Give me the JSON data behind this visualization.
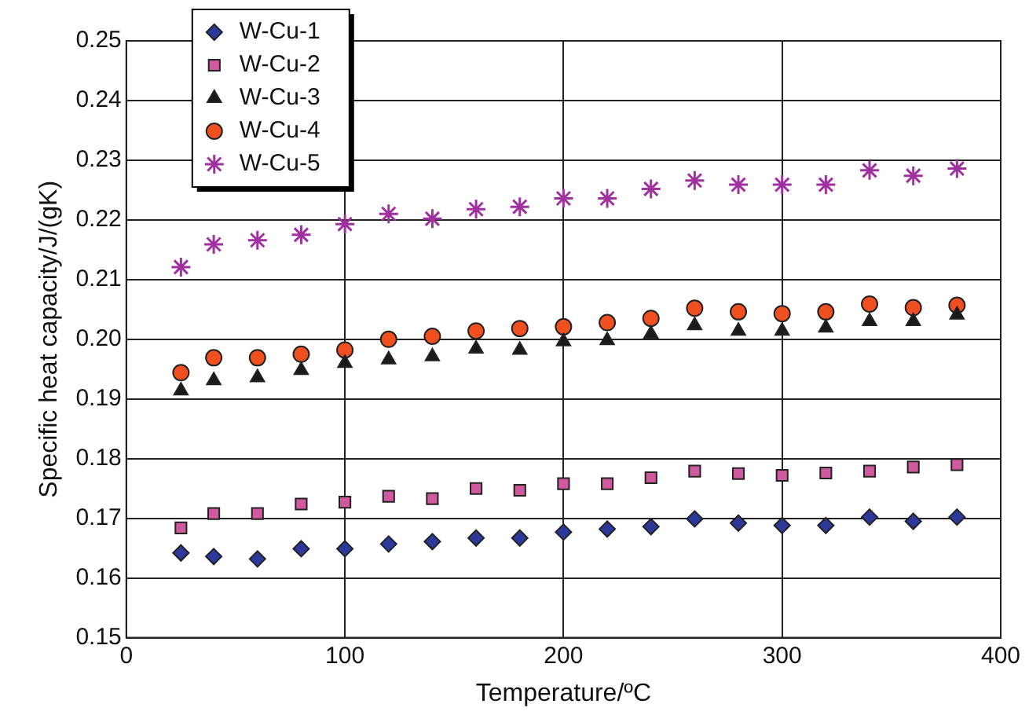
{
  "chart_data": {
    "type": "scatter",
    "xlabel": "Temperature/ºC",
    "ylabel": "Specific heat capacity/J/(gK)",
    "x": [
      25,
      40,
      60,
      80,
      100,
      120,
      140,
      160,
      180,
      200,
      220,
      240,
      260,
      280,
      300,
      320,
      340,
      360,
      380
    ],
    "series": [
      {
        "name": "W-Cu-1",
        "color": "#2b3a9a",
        "marker": "diamond",
        "values": [
          0.1642,
          0.1636,
          0.1632,
          0.1649,
          0.1649,
          0.1657,
          0.1661,
          0.1667,
          0.1667,
          0.1677,
          0.1682,
          0.1686,
          0.1699,
          0.1692,
          0.1688,
          0.1688,
          0.1702,
          0.1695,
          0.1702
        ]
      },
      {
        "name": "W-Cu-2",
        "color": "#d05aa0",
        "marker": "square",
        "values": [
          0.1684,
          0.1708,
          0.1708,
          0.1724,
          0.1727,
          0.1737,
          0.1733,
          0.175,
          0.1747,
          0.1758,
          0.1758,
          0.1768,
          0.1779,
          0.1775,
          0.1772,
          0.1776,
          0.1779,
          0.1786,
          0.179
        ]
      },
      {
        "name": "W-Cu-3",
        "color": "#1a1a1a",
        "marker": "triangle",
        "values": [
          0.1914,
          0.1931,
          0.1936,
          0.1948,
          0.196,
          0.1966,
          0.1971,
          0.1984,
          0.1982,
          0.1996,
          0.1998,
          0.2009,
          0.2023,
          0.2014,
          0.2014,
          0.2019,
          0.203,
          0.203,
          0.2041
        ]
      },
      {
        "name": "W-Cu-4",
        "color": "#f05020",
        "marker": "circle",
        "values": [
          0.1944,
          0.1969,
          0.1969,
          0.1975,
          0.1982,
          0.2,
          0.2005,
          0.2014,
          0.2018,
          0.2021,
          0.2028,
          0.2035,
          0.2052,
          0.2046,
          0.2043,
          0.2046,
          0.2059,
          0.2053,
          0.2057
        ]
      },
      {
        "name": "W-Cu-5",
        "color": "#a030a0",
        "marker": "cross",
        "values": [
          0.2121,
          0.2159,
          0.2166,
          0.2175,
          0.2193,
          0.221,
          0.2202,
          0.2218,
          0.2222,
          0.2236,
          0.2236,
          0.2252,
          0.2266,
          0.2259,
          0.2259,
          0.2259,
          0.2283,
          0.2274,
          0.2286
        ]
      }
    ],
    "xlim": [
      0,
      400
    ],
    "xticks": [
      0,
      100,
      200,
      300,
      400
    ],
    "ylim": [
      0.15,
      0.25
    ],
    "yticks": [
      0.15,
      0.16,
      0.17,
      0.18,
      0.19,
      {
        "value": 0.2,
        "label": "0.20"
      },
      0.21,
      0.22,
      0.23,
      0.24,
      0.25
    ],
    "grid": true,
    "legend": "top left"
  }
}
